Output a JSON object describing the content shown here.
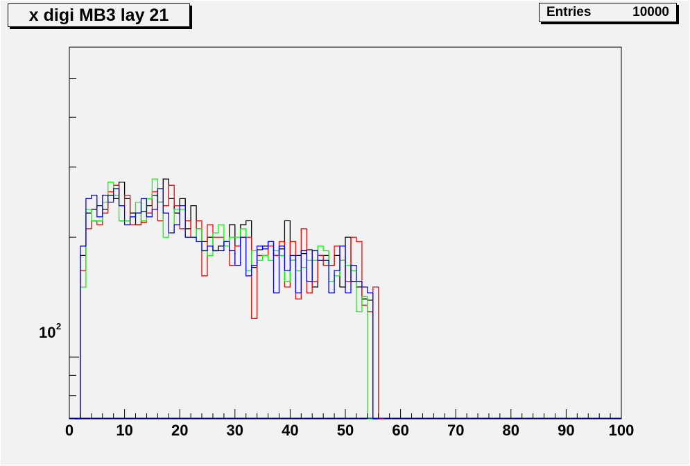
{
  "title": "x digi MB3 lay 21",
  "stats": {
    "label": "Entries",
    "value": "10000"
  },
  "y_axis": {
    "label_base": "10",
    "label_exp": "2"
  },
  "chart_data": {
    "type": "line",
    "subtype": "step-histogram",
    "x_range": [
      0,
      100
    ],
    "y_log": true,
    "ylim": [
      70,
      600
    ],
    "bin_width": 1,
    "bin_start": 1,
    "grid": false,
    "legend": "none",
    "x_ticks": [
      "0",
      "10",
      "20",
      "30",
      "40",
      "50",
      "60",
      "70",
      "80",
      "90",
      "100"
    ],
    "y_tick_labels": [
      "10^2"
    ],
    "series": [
      {
        "color": "#000000",
        "values": [
          0,
          180,
          230,
          235,
          240,
          235,
          255,
          250,
          275,
          250,
          230,
          215,
          232,
          240,
          255,
          245,
          280,
          250,
          230,
          250,
          210,
          240,
          210,
          195,
          200,
          185,
          190,
          195,
          215,
          190,
          215,
          220,
          168,
          186,
          190,
          195,
          180,
          187,
          220,
          175,
          180,
          182,
          186,
          150,
          180,
          180,
          170,
          180,
          150,
          200,
          155,
          150,
          140,
          139,
          0
        ]
      },
      {
        "color": "#ff0000",
        "values": [
          0,
          165,
          210,
          220,
          215,
          230,
          260,
          270,
          240,
          255,
          215,
          215,
          218,
          230,
          260,
          220,
          240,
          270,
          240,
          210,
          220,
          200,
          220,
          160,
          215,
          200,
          200,
          190,
          170,
          190,
          200,
          200,
          125,
          180,
          180,
          190,
          180,
          195,
          150,
          195,
          140,
          210,
          145,
          155,
          180,
          170,
          170,
          190,
          175,
          155,
          200,
          195,
          135,
          130,
          150,
          0
        ]
      },
      {
        "color": "#00ff00",
        "values": [
          0,
          150,
          235,
          220,
          220,
          245,
          275,
          255,
          220,
          220,
          225,
          245,
          220,
          250,
          280,
          245,
          200,
          205,
          235,
          235,
          200,
          200,
          210,
          185,
          180,
          205,
          215,
          190,
          200,
          200,
          210,
          165,
          185,
          175,
          180,
          175,
          185,
          180,
          155,
          175,
          165,
          168,
          175,
          175,
          190,
          185,
          155,
          160,
          175,
          170,
          165,
          130,
          142,
          0
        ]
      },
      {
        "color": "#0000ff",
        "values": [
          0,
          190,
          250,
          255,
          225,
          255,
          245,
          265,
          240,
          215,
          225,
          230,
          250,
          225,
          235,
          265,
          230,
          205,
          215,
          240,
          200,
          200,
          195,
          185,
          190,
          185,
          185,
          195,
          185,
          170,
          200,
          160,
          170,
          190,
          187,
          195,
          145,
          190,
          165,
          180,
          145,
          185,
          155,
          185,
          175,
          175,
          145,
          165,
          190,
          145,
          170,
          155,
          150,
          145,
          0
        ]
      }
    ]
  }
}
